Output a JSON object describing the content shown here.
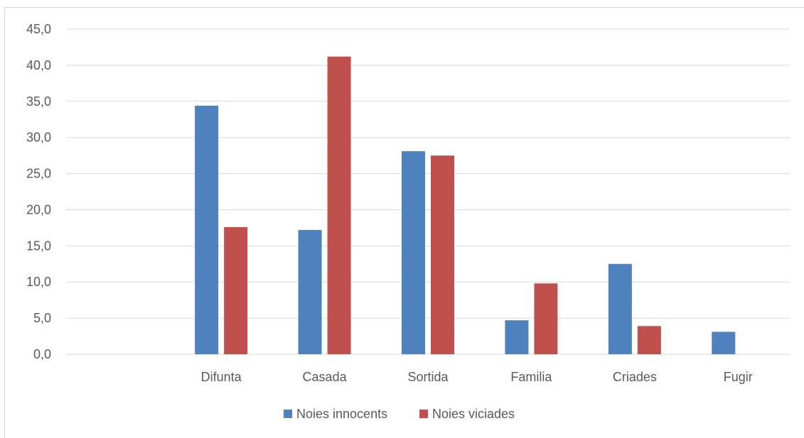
{
  "chart_data": {
    "type": "bar",
    "title": "",
    "xlabel": "",
    "ylabel": "",
    "categories": [
      "",
      "Difunta",
      "Casada",
      "Sortida",
      "Familia",
      "Criades",
      "Fugir"
    ],
    "series": [
      {
        "name": "Noies innocents",
        "color": "#4F81BD",
        "values": [
          null,
          34.4,
          17.2,
          28.1,
          4.7,
          12.5,
          3.1
        ]
      },
      {
        "name": "Noies viciades",
        "color": "#C0504D",
        "values": [
          null,
          17.6,
          41.2,
          27.5,
          9.8,
          3.9,
          0
        ]
      }
    ],
    "ylim": [
      0,
      45
    ],
    "yticks": [
      "0,0",
      "5,0",
      "10,0",
      "15,0",
      "20,0",
      "25,0",
      "30,0",
      "35,0",
      "40,0",
      "45,0"
    ],
    "grid": true,
    "legend": "bottom"
  }
}
